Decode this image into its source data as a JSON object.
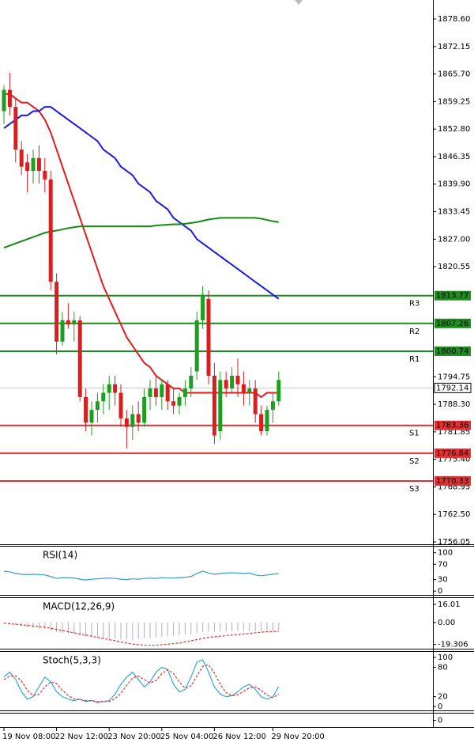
{
  "chart_data": [
    {
      "type": "candlestick",
      "ylim": [
        1755.5,
        1883.05
      ],
      "yticks": [
        {
          "value": 1878.6,
          "label": "1878.60"
        },
        1872.15,
        {
          "value": 1865.7,
          "label": "1865.70"
        },
        1859.25,
        {
          "value": 1852.8,
          "label": "1852.80"
        },
        1846.35,
        {
          "value": 1839.9,
          "label": "1839.90"
        },
        1833.45,
        {
          "value": 1827,
          "label": "1827.00"
        },
        1820.55,
        1794.75,
        {
          "value": 1788.3,
          "label": "1788.30"
        },
        1781.85,
        {
          "value": 1775.4,
          "label": "1775.40"
        },
        1768.95,
        {
          "value": 1762.5,
          "label": "1762.50"
        },
        1756.05
      ],
      "xticks": [
        {
          "value": 0,
          "label": "19 Nov 08:00"
        },
        {
          "value": 9,
          "label": "22 Nov 12:00"
        },
        {
          "value": 18,
          "label": "23 Nov 20:00"
        },
        {
          "value": 27,
          "label": "25 Nov 04:00"
        },
        {
          "value": 36,
          "label": "26 Nov 12:00"
        },
        {
          "value": 46,
          "label": "29 Nov 20:00"
        }
      ],
      "up_color": "#1e9e1e",
      "down_color": "#d81e1e",
      "ohlc": [
        [
          1857,
          1863,
          1854,
          1862
        ],
        [
          1862,
          1866,
          1856,
          1858
        ],
        [
          1858,
          1860,
          1845,
          1848
        ],
        [
          1848,
          1850,
          1842,
          1844
        ],
        [
          1845,
          1847,
          1838,
          1843
        ],
        [
          1843,
          1848,
          1840,
          1846
        ],
        [
          1846,
          1849,
          1840,
          1843
        ],
        [
          1843,
          1846,
          1838,
          1841
        ],
        [
          1841,
          1843,
          1815,
          1817
        ],
        [
          1817,
          1819,
          1800,
          1803
        ],
        [
          1803,
          1810,
          1802,
          1808
        ],
        [
          1808,
          1812,
          1806,
          1807
        ],
        [
          1807,
          1810,
          1803,
          1808
        ],
        [
          1808,
          1809,
          1789,
          1790
        ],
        [
          1790,
          1792,
          1782,
          1784
        ],
        [
          1784,
          1789,
          1781,
          1787
        ],
        [
          1787,
          1791,
          1784,
          1789
        ],
        [
          1789,
          1793,
          1786,
          1791
        ],
        [
          1791,
          1795,
          1787,
          1793
        ],
        [
          1793,
          1795,
          1788,
          1791
        ],
        [
          1791,
          1793,
          1783,
          1785
        ],
        [
          1785,
          1787,
          1778,
          1783
        ],
        [
          1783,
          1788,
          1780,
          1786
        ],
        [
          1786,
          1789,
          1782,
          1784
        ],
        [
          1784,
          1792,
          1783,
          1790
        ],
        [
          1790,
          1794,
          1787,
          1792
        ],
        [
          1792,
          1795,
          1788,
          1790
        ],
        [
          1790,
          1794,
          1787,
          1793
        ],
        [
          1793,
          1794,
          1787,
          1789
        ],
        [
          1789,
          1792,
          1786,
          1788
        ],
        [
          1788,
          1791,
          1786,
          1790
        ],
        [
          1790,
          1794,
          1788,
          1792
        ],
        [
          1792,
          1797,
          1790,
          1795
        ],
        [
          1796,
          1810,
          1794,
          1808
        ],
        [
          1808,
          1816,
          1806,
          1814
        ],
        [
          1813,
          1815,
          1793,
          1795
        ],
        [
          1795,
          1798,
          1779,
          1781
        ],
        [
          1782,
          1796,
          1780,
          1794
        ],
        [
          1794,
          1796,
          1790,
          1792
        ],
        [
          1792,
          1797,
          1791,
          1795
        ],
        [
          1795,
          1799,
          1790,
          1793
        ],
        [
          1793,
          1796,
          1788,
          1791
        ],
        [
          1791,
          1794,
          1788,
          1792
        ],
        [
          1792,
          1794,
          1784,
          1786
        ],
        [
          1786,
          1788,
          1781,
          1782
        ],
        [
          1782,
          1788,
          1781,
          1787
        ],
        [
          1787,
          1791,
          1784,
          1789
        ],
        [
          1789,
          1796,
          1788,
          1794
        ]
      ],
      "series": [
        {
          "color": "#e41b1b",
          "values": [
            1861,
            1861,
            1860,
            1859,
            1859,
            1858,
            1857,
            1855,
            1852,
            1848,
            1844,
            1840,
            1836,
            1832,
            1828,
            1824,
            1820,
            1816,
            1813,
            1810,
            1807,
            1804,
            1802,
            1800,
            1798,
            1797,
            1795,
            1794,
            1793,
            1792,
            1792,
            1791,
            1791,
            1791,
            1791,
            1791,
            1791,
            1791,
            1791,
            1791,
            1791,
            1791,
            1791,
            1791,
            1790,
            1791,
            1791,
            1791
          ]
        },
        {
          "color": "#1a1ae0",
          "values": [
            1853,
            1854,
            1855,
            1856,
            1856,
            1857,
            1857,
            1858,
            1858,
            1857,
            1856,
            1855,
            1854,
            1853,
            1852,
            1851,
            1850,
            1848,
            1847,
            1846,
            1844,
            1843,
            1842,
            1840,
            1839,
            1838,
            1836,
            1835,
            1834,
            1832,
            1831,
            1830,
            1829,
            1827,
            1826,
            1825,
            1824,
            1823,
            1822,
            1821,
            1820,
            1819,
            1818,
            1817,
            1816,
            1815,
            1814,
            1813
          ]
        },
        {
          "color": "#138a13",
          "values": [
            1825,
            1825.5,
            1826,
            1826.5,
            1827,
            1827.5,
            1828,
            1828.5,
            1828.8,
            1829,
            1829.3,
            1829.6,
            1829.8,
            1830,
            1830,
            1830,
            1830,
            1830,
            1830,
            1830,
            1830,
            1830,
            1830,
            1830,
            1830,
            1830,
            1830.2,
            1830.3,
            1830.4,
            1830.5,
            1830.5,
            1830.6,
            1830.8,
            1831,
            1831.3,
            1831.6,
            1831.8,
            1832,
            1832,
            1832,
            1832,
            1832,
            1832,
            1832,
            1831.8,
            1831.5,
            1831.2,
            1831
          ]
        }
      ],
      "levels": [
        {
          "name": "R3",
          "value": 1813.77,
          "color": "#1e8c1e"
        },
        {
          "name": "R2",
          "value": 1807.26,
          "color": "#1e8c1e"
        },
        {
          "name": "R1",
          "value": 1800.74,
          "color": "#1e8c1e"
        },
        {
          "name": "S1",
          "value": 1783.36,
          "color": "#e03030"
        },
        {
          "name": "S2",
          "value": 1776.84,
          "color": "#e03030"
        },
        {
          "name": "S3",
          "value": 1770.33,
          "color": "#e03030"
        }
      ],
      "last": 1792.14
    },
    {
      "type": "line",
      "title": "RSI(14)",
      "ylim": [
        -10,
        116
      ],
      "yticks": [
        100,
        70,
        30,
        0
      ],
      "series": [
        {
          "color": "#3a9ad0",
          "values": [
            52,
            50,
            46,
            44,
            43,
            44,
            43,
            42,
            38,
            33,
            35,
            35,
            34,
            31,
            29,
            31,
            32,
            33,
            34,
            33,
            31,
            30,
            32,
            31,
            33,
            34,
            33,
            35,
            34,
            34,
            35,
            36,
            38,
            46,
            52,
            47,
            44,
            46,
            47,
            48,
            47,
            46,
            47,
            42,
            40,
            42,
            44,
            46
          ]
        }
      ]
    },
    {
      "type": "bar",
      "title": "MACD(12,26,9)",
      "ylim": [
        -23,
        21.6
      ],
      "yticks": [
        16.01,
        {
          "value": 0,
          "label": "0.00"
        },
        -19.306
      ],
      "color": "#b0b0b0",
      "values": [
        -1,
        -1.5,
        -2,
        -3,
        -4,
        -5,
        -5.5,
        -6,
        -7,
        -8.5,
        -9.5,
        -10,
        -10.5,
        -11.5,
        -12.5,
        -13,
        -13.5,
        -14,
        -14,
        -14.5,
        -15,
        -15,
        -15,
        -14.5,
        -14,
        -13.5,
        -13,
        -12.5,
        -12,
        -11.5,
        -11,
        -10.5,
        -10,
        -9,
        -8,
        -8,
        -8,
        -8,
        -8,
        -7.5,
        -7.5,
        -7.5,
        -7.5,
        -7.5,
        -7.5,
        -7,
        -7,
        -6.5
      ],
      "series": [
        {
          "color": "#e03030",
          "dash": true,
          "values": [
            -0.5,
            -1,
            -1.5,
            -2,
            -2.5,
            -3,
            -3.5,
            -4,
            -5,
            -6,
            -7,
            -8,
            -9,
            -10,
            -11,
            -12,
            -13,
            -14,
            -15,
            -16,
            -17,
            -18,
            -19,
            -19.5,
            -20,
            -20,
            -20,
            -19.5,
            -19,
            -18.5,
            -18,
            -17,
            -16,
            -15,
            -14,
            -13,
            -12.5,
            -12,
            -11.5,
            -11,
            -10.5,
            -10,
            -9.5,
            -9,
            -8.5,
            -8,
            -8,
            -7.5
          ]
        }
      ]
    },
    {
      "type": "line",
      "title": "Stoch(5,3,3)",
      "ylim": [
        -8,
        111.3
      ],
      "yticks": [
        100,
        80,
        20,
        0
      ],
      "series": [
        {
          "color": "#2eaacc",
          "values": [
            60,
            70,
            55,
            30,
            15,
            20,
            40,
            60,
            50,
            30,
            20,
            15,
            12,
            15,
            10,
            12,
            8,
            10,
            12,
            25,
            45,
            60,
            70,
            55,
            40,
            50,
            70,
            80,
            75,
            45,
            30,
            35,
            60,
            90,
            95,
            70,
            40,
            25,
            20,
            22,
            30,
            40,
            45,
            35,
            20,
            15,
            20,
            40
          ]
        },
        {
          "color": "#e03030",
          "dash": true,
          "values": [
            55,
            62,
            62,
            52,
            33,
            22,
            25,
            40,
            50,
            47,
            33,
            22,
            16,
            14,
            12,
            12,
            10,
            10,
            10,
            16,
            27,
            43,
            58,
            62,
            55,
            48,
            53,
            67,
            75,
            67,
            50,
            37,
            42,
            62,
            82,
            85,
            68,
            45,
            28,
            22,
            24,
            31,
            38,
            40,
            33,
            23,
            18,
            25
          ]
        }
      ]
    },
    {
      "type": "blank",
      "ylim": [
        -1,
        1
      ],
      "yticks": [
        0
      ]
    }
  ]
}
